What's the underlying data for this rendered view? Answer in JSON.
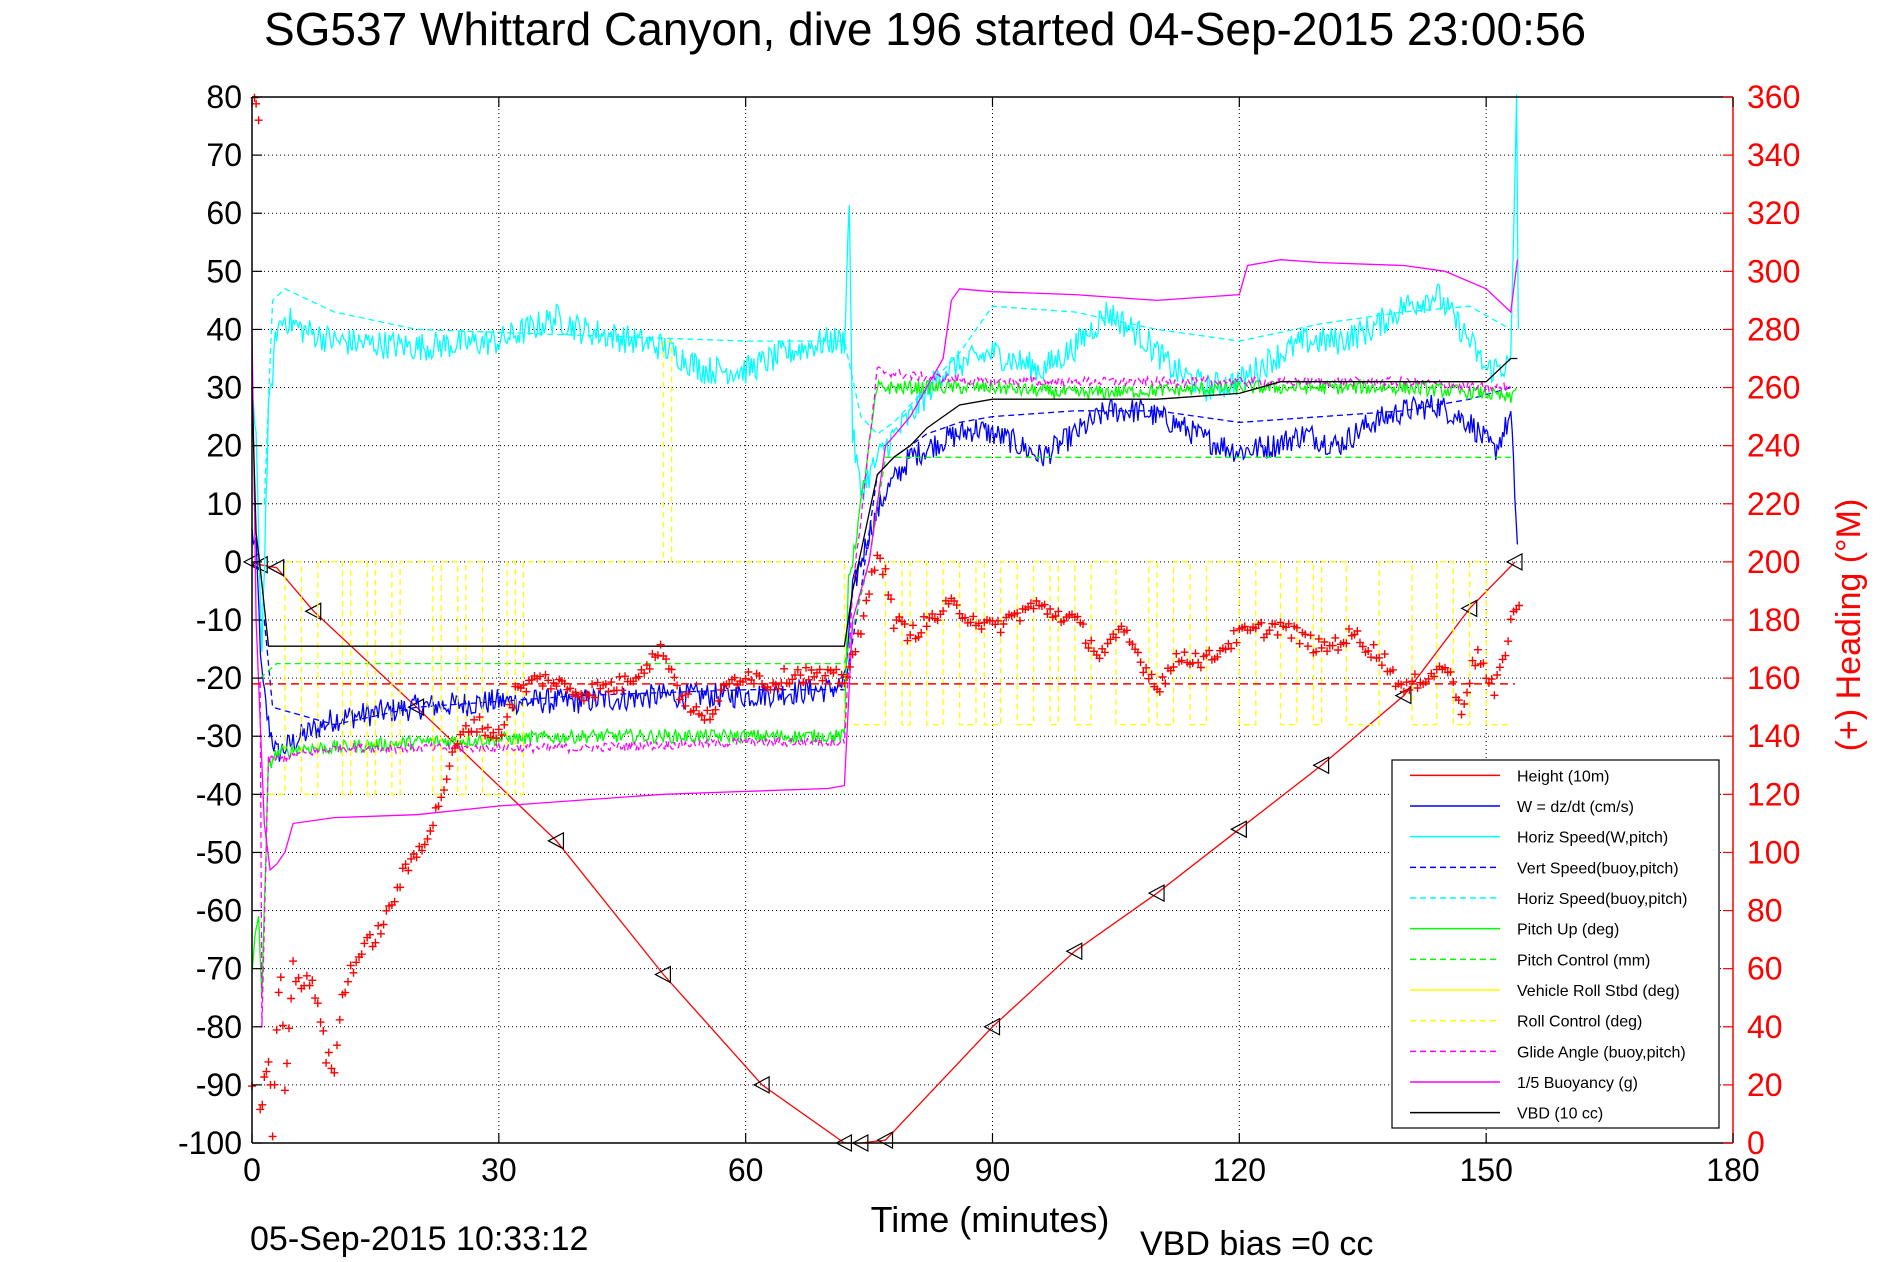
{
  "chart_data": {
    "type": "line",
    "title": "SG537 Whittard Canyon, dive 196 started 04-Sep-2015 23:00:56",
    "xlabel": "Time (minutes)",
    "ylabel_right": "(+) Heading (°M)",
    "footer_left": "05-Sep-2015 10:33:12",
    "footer_right": "VBD bias =0 cc",
    "xlim": [
      0,
      180
    ],
    "ylim_left": [
      -100,
      80
    ],
    "ylim_right": [
      0,
      360
    ],
    "grid": true,
    "legend_position": "bottom-right",
    "x_ticks": [
      "0",
      "30",
      "60",
      "90",
      "120",
      "150",
      "180"
    ],
    "y_left_ticks": [
      "80",
      "70",
      "60",
      "50",
      "40",
      "30",
      "20",
      "10",
      "0",
      "-10",
      "-20",
      "-30",
      "-40",
      "-50",
      "-60",
      "-70",
      "-80",
      "-90",
      "-100"
    ],
    "y_right_ticks": [
      "360",
      "340",
      "320",
      "300",
      "280",
      "260",
      "240",
      "220",
      "200",
      "180",
      "160",
      "140",
      "120",
      "100",
      "80",
      "60",
      "40",
      "20",
      "0"
    ],
    "series": [
      {
        "name": "Height (10m)",
        "color": "#ff0000",
        "style": "solid",
        "marker": "triangle",
        "x": [
          0,
          1,
          3,
          7.5,
          20,
          37,
          50,
          62,
          72,
          74,
          77,
          90,
          100,
          110,
          120,
          130,
          140,
          148,
          153.5
        ],
        "y": [
          0,
          -0.5,
          -1,
          -8.5,
          -25,
          -48,
          -71,
          -90,
          -100,
          -100,
          -99.5,
          -80,
          -67,
          -57,
          -46,
          -35,
          -23,
          -8,
          0
        ]
      },
      {
        "name": "W = dz/dt (cm/s)",
        "color": "#0000ff",
        "style": "solid",
        "noise": 2.2,
        "x": [
          0,
          0.5,
          1.2,
          2,
          3,
          6,
          10,
          20,
          30,
          40,
          50,
          60,
          70,
          72,
          73,
          75,
          77,
          78,
          80,
          84,
          88,
          92,
          96,
          100,
          104,
          108,
          112,
          116,
          120,
          124,
          128,
          132,
          136,
          140,
          144,
          148,
          151,
          153,
          153.8
        ],
        "y": [
          5,
          2,
          -20,
          -28,
          -33,
          -30,
          -27,
          -25,
          -24,
          -24,
          -23,
          -23,
          -22,
          -21,
          -5,
          5,
          12,
          14,
          18,
          21,
          23,
          21,
          18,
          22,
          26,
          26,
          24,
          21,
          19,
          20,
          22,
          20,
          24,
          26,
          27,
          24,
          19,
          25,
          3
        ]
      },
      {
        "name": "Horiz Speed(W,pitch)",
        "color": "#00ffff",
        "style": "solid",
        "noise": 2.5,
        "x": [
          0,
          0.5,
          1.2,
          2,
          3,
          4,
          6,
          10,
          20,
          30,
          37,
          40,
          50,
          55,
          60,
          65,
          70,
          72,
          72.6,
          73,
          74,
          75,
          77,
          80,
          84,
          86,
          90,
          96,
          100,
          104,
          108,
          112,
          116,
          120,
          124,
          128,
          132,
          136,
          140,
          144,
          148,
          150,
          153,
          153.7,
          153.9
        ],
        "y": [
          30,
          20,
          -15,
          25,
          40,
          42,
          40,
          38,
          37,
          38,
          42,
          40,
          37,
          33,
          33,
          36,
          38,
          38,
          62,
          22,
          12,
          15,
          20,
          25,
          33,
          34,
          36,
          33,
          37,
          43,
          39,
          33,
          30,
          31,
          35,
          38,
          38,
          40,
          44,
          46,
          38,
          33,
          34,
          80,
          40
        ]
      },
      {
        "name": "Vert Speed(buoy,pitch)",
        "color": "#0000ff",
        "style": "dashed",
        "x": [
          1.5,
          2.5,
          10,
          20,
          40,
          60,
          72,
          74,
          76,
          78,
          82,
          86,
          90,
          100,
          110,
          120,
          130,
          140,
          148,
          153
        ],
        "y": [
          -10,
          -25,
          -28,
          -25,
          -23,
          -22,
          -22,
          -5,
          15,
          18,
          22,
          24,
          25,
          26,
          26,
          24,
          25,
          26,
          28,
          30
        ]
      },
      {
        "name": "Horiz Speed(buoy,pitch)",
        "color": "#00ffff",
        "style": "dashed",
        "x": [
          1.5,
          2.5,
          4,
          10,
          20,
          40,
          60,
          72,
          74,
          76,
          78,
          82,
          86,
          90,
          100,
          110,
          120,
          130,
          140,
          148,
          153
        ],
        "y": [
          10,
          45,
          47,
          43,
          40,
          39,
          38,
          38,
          25,
          22,
          24,
          30,
          36,
          44,
          43,
          40,
          38,
          41,
          43,
          44,
          40
        ]
      },
      {
        "name": "Pitch Up (deg)",
        "color": "#00ff00",
        "style": "solid",
        "noise": 1.2,
        "x": [
          0,
          0.8,
          1.2,
          2,
          3,
          6,
          10,
          20,
          40,
          60,
          72,
          72.5,
          73,
          75,
          76,
          80,
          90,
          100,
          120,
          140,
          150,
          153,
          153.7
        ],
        "y": [
          -70,
          -60,
          -75,
          -35,
          -33,
          -32,
          -32,
          -31,
          -30,
          -30,
          -30,
          -2,
          0,
          20,
          30,
          30,
          30,
          29,
          30,
          30,
          29,
          28,
          30
        ]
      },
      {
        "name": "Pitch Control (mm)",
        "color": "#00ff00",
        "style": "dashed",
        "x": [
          1,
          3,
          10,
          30,
          50,
          70,
          72,
          75,
          77,
          80,
          90,
          100,
          120,
          140,
          153
        ],
        "y": [
          -20,
          -17.5,
          -17.5,
          -17.5,
          -17.5,
          -17.5,
          -17.5,
          0,
          18,
          18,
          18,
          18,
          18,
          18,
          18
        ]
      },
      {
        "name": "Vehicle Roll Stbd (deg)",
        "color": "#ffff00",
        "style": "solid",
        "x": [],
        "y": []
      },
      {
        "name": "Roll Control (deg)",
        "color": "#ffff00",
        "style": "dashed",
        "x": [
          2,
          4,
          4,
          6,
          6,
          8,
          8,
          11,
          11,
          12,
          12,
          14,
          14,
          15,
          15,
          17,
          17,
          18,
          18,
          22,
          22,
          23,
          23,
          25,
          25,
          26,
          26,
          28,
          28,
          31,
          31,
          32,
          32,
          33,
          33,
          50,
          50,
          51,
          51,
          52,
          52,
          72,
          72,
          77,
          77,
          79,
          79,
          80,
          80,
          82,
          82,
          84,
          84,
          86,
          86,
          88,
          88,
          89,
          89,
          91,
          91,
          93,
          93,
          95,
          95,
          97,
          97,
          98,
          98,
          100,
          100,
          102,
          102,
          105,
          105,
          109,
          109,
          110,
          110,
          112,
          112,
          114,
          114,
          116,
          116,
          120,
          120,
          122,
          122,
          125,
          125,
          127,
          127,
          129,
          129,
          130,
          130,
          133,
          133,
          137,
          137,
          141,
          141,
          144,
          144,
          146,
          146,
          148,
          148,
          150,
          150,
          153
        ],
        "y": [
          -40,
          -40,
          0,
          0,
          -40,
          -40,
          0,
          0,
          -40,
          -40,
          0,
          0,
          -40,
          -40,
          0,
          0,
          -40,
          -40,
          0,
          0,
          -40,
          -40,
          0,
          0,
          -40,
          -40,
          0,
          0,
          -40,
          -40,
          0,
          0,
          -40,
          -40,
          0,
          0,
          38,
          38,
          0,
          0,
          0,
          0,
          -28,
          -28,
          0,
          0,
          -28,
          -28,
          0,
          0,
          -28,
          -28,
          0,
          0,
          -28,
          -28,
          0,
          0,
          -28,
          -28,
          0,
          0,
          -28,
          -28,
          0,
          0,
          -28,
          -28,
          0,
          0,
          -28,
          -28,
          0,
          0,
          -28,
          -28,
          0,
          0,
          -28,
          -28,
          0,
          0,
          -28,
          -28,
          0,
          0,
          -28,
          -28,
          0,
          0,
          -28,
          -28,
          0,
          0,
          -28,
          -28,
          0,
          0,
          -28,
          -28,
          0,
          0,
          -28,
          -28,
          0,
          0,
          -28,
          -28,
          0,
          0,
          -28,
          -28
        ]
      },
      {
        "name": "Glide Angle (buoy,pitch)",
        "color": "#ff00ff",
        "style": "dashed",
        "noise": 0.8,
        "x": [
          1,
          1.2,
          2,
          3,
          6,
          10,
          20,
          40,
          60,
          72,
          73,
          75,
          76,
          80,
          90,
          100,
          120,
          140,
          150,
          153
        ],
        "y": [
          -20,
          -80,
          -34,
          -34,
          -33,
          -32,
          -32,
          -32,
          -31,
          -31,
          -5,
          20,
          33,
          32,
          31,
          31,
          31,
          31,
          30,
          30
        ]
      },
      {
        "name": "1/5 Buoyancy (g)",
        "color": "#ff00ff",
        "style": "solid",
        "x": [
          0,
          0.5,
          1.5,
          2.2,
          3,
          4,
          5,
          10,
          20,
          30,
          40,
          50,
          60,
          70,
          72,
          73,
          75,
          77,
          80,
          84,
          85,
          86,
          90,
          100,
          110,
          115,
          120,
          121,
          125,
          130,
          140,
          145,
          150,
          153,
          153.8
        ],
        "y": [
          40,
          -10,
          -45,
          -53,
          -52,
          -50,
          -45,
          -44,
          -43.5,
          -42,
          -41,
          -40,
          -39.5,
          -39,
          -38.5,
          -10,
          0,
          20,
          25,
          35,
          45,
          47,
          46.5,
          46,
          45,
          45.5,
          46,
          51,
          52,
          51.5,
          51,
          50,
          47,
          43,
          52
        ]
      },
      {
        "name": "VBD (10 cc)",
        "color": "#000000",
        "style": "solid",
        "x": [
          0,
          0.5,
          1,
          2,
          3,
          30,
          72,
          73,
          76,
          78,
          80,
          82,
          84,
          86,
          90,
          100,
          110,
          120,
          125,
          150,
          153,
          153.8
        ],
        "y": [
          30,
          5,
          -1,
          -14.5,
          -14.5,
          -14.5,
          -14.5,
          -5,
          15,
          18,
          20,
          23,
          25,
          27,
          28,
          28,
          28,
          29,
          31,
          31,
          35,
          35
        ]
      }
    ],
    "heading": {
      "name": "Heading (°M)",
      "color": "#ff0000",
      "marker": "plus",
      "mean": 158,
      "x": [
        0,
        0.3,
        0.5,
        0.8,
        1,
        1.5,
        2,
        2.5,
        3,
        3.5,
        4,
        4.5,
        5,
        6,
        7,
        8,
        9,
        10,
        11,
        12,
        14,
        16,
        18,
        20,
        22,
        23,
        25,
        27,
        30,
        32,
        35,
        40,
        45,
        48,
        50,
        52,
        55,
        58,
        60,
        63,
        66,
        70,
        72,
        74,
        76,
        77,
        78,
        80,
        85,
        90,
        95,
        100,
        103,
        106,
        110,
        113,
        116,
        120,
        125,
        130,
        134,
        138,
        140,
        142,
        144,
        145,
        147,
        149,
        150,
        151,
        152,
        153,
        154
      ],
      "y": [
        20,
        360,
        360,
        350,
        10,
        20,
        30,
        5,
        40,
        60,
        20,
        40,
        60,
        55,
        55,
        50,
        30,
        25,
        50,
        60,
        68,
        75,
        90,
        100,
        110,
        120,
        138,
        145,
        140,
        155,
        160,
        155,
        158,
        165,
        170,
        155,
        145,
        158,
        162,
        158,
        162,
        160,
        160,
        175,
        205,
        195,
        180,
        175,
        185,
        177,
        185,
        180,
        168,
        176,
        157,
        168,
        166,
        175,
        178,
        170,
        175,
        165,
        155,
        160,
        162,
        165,
        150,
        170,
        160,
        155,
        165,
        180,
        185
      ]
    }
  }
}
